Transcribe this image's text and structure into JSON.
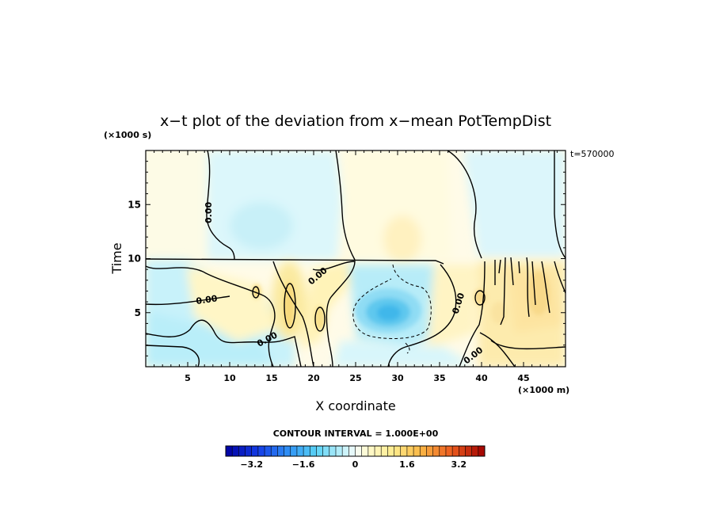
{
  "chart_data": {
    "type": "heatmap",
    "title": "x−t plot of the deviation from x−mean PotTempDist",
    "xlabel": "X coordinate",
    "ylabel": "Time",
    "x_unit": "(×1000 m)",
    "y_unit": "(×1000 s)",
    "time_label": "t=570000",
    "xlim": [
      0,
      50
    ],
    "ylim": [
      0,
      20
    ],
    "x_ticks": [
      5,
      10,
      15,
      20,
      25,
      30,
      35,
      40,
      45
    ],
    "y_ticks": [
      5,
      10,
      15
    ],
    "contour_interval_label": "CONTOUR INTERVAL = 1.000E+00",
    "contour_label": "0.00",
    "colorbar": {
      "min": -4,
      "max": 4,
      "step": 0.2,
      "tick_values": [
        -3.2,
        -1.6,
        0,
        1.6,
        3.2
      ],
      "tick_labels": [
        "−3.2",
        "−1.6",
        "0",
        "1.6",
        "3.2"
      ]
    },
    "features": [
      {
        "desc": "cold minimum",
        "x": 29,
        "t": 5,
        "value": -2.0
      },
      {
        "desc": "warm upper band",
        "x": 28,
        "t": 15,
        "value": 0.4
      },
      {
        "desc": "cool upper left",
        "x": 12,
        "t": 16,
        "value": -0.5
      },
      {
        "desc": "cool upper right",
        "x": 45,
        "t": 15,
        "value": -0.3
      },
      {
        "desc": "warm streak",
        "x": 17,
        "t": 5,
        "value": 0.8
      },
      {
        "desc": "warm streak",
        "x": 21,
        "t": 6,
        "value": 0.6
      },
      {
        "desc": "warm region",
        "x": 40,
        "t": 5,
        "value": 0.7
      },
      {
        "desc": "warm region",
        "x": 46,
        "t": 4,
        "value": 0.8
      }
    ]
  }
}
